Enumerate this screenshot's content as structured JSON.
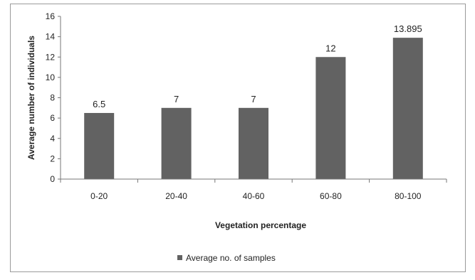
{
  "chart_data": {
    "type": "bar",
    "title": "",
    "xlabel": "Vegetation percentage",
    "ylabel": "Average number of individuals",
    "categories": [
      "0-20",
      "20-40",
      "40-60",
      "60-80",
      "80-100"
    ],
    "series": [
      {
        "name": "Average no. of samples",
        "values": [
          6.5,
          7,
          7,
          12,
          13.895
        ],
        "labels": [
          "6.5",
          "7",
          "7",
          "12",
          "13.895"
        ],
        "color": "#626262"
      }
    ],
    "ylim": [
      0,
      16
    ],
    "yticks": [
      0,
      2,
      4,
      6,
      8,
      10,
      12,
      14,
      16
    ],
    "grid": false,
    "legend": "bottom"
  }
}
